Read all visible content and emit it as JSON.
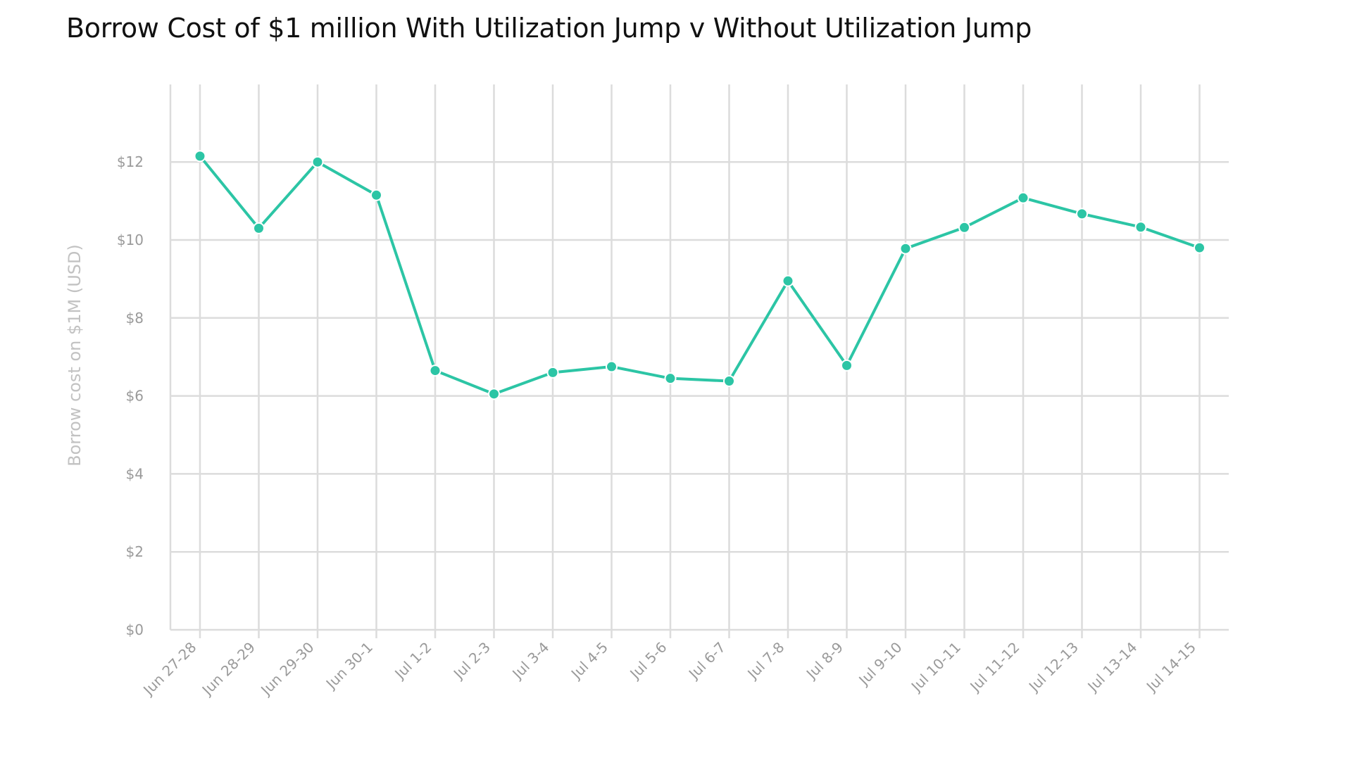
{
  "chart_data": {
    "type": "line",
    "title": "Borrow Cost of $1 million With Utilization Jump v Without Utilization Jump",
    "xlabel": "",
    "ylabel": "Borrow cost on $1M (USD)",
    "ylim": [
      0,
      14
    ],
    "yticks": [
      0,
      2,
      4,
      6,
      8,
      10,
      12
    ],
    "ytick_labels": [
      "$0",
      "$2",
      "$4",
      "$6",
      "$8",
      "$10",
      "$12"
    ],
    "grid": true,
    "color": "#2cc5a5",
    "categories": [
      "Jun 27-28",
      "Jun 28-29",
      "Jun 29-30",
      "Jun 30-1",
      "Jul 1-2",
      "Jul 2-3",
      "Jul 3-4",
      "Jul 4-5",
      "Jul 5-6",
      "Jul 6-7",
      "Jul 7-8",
      "Jul 8-9",
      "Jul 9-10",
      "Jul 10-11",
      "Jul 11-12",
      "Jul 12-13",
      "Jul 13-14",
      "Jul 14-15"
    ],
    "series": [
      {
        "values": [
          12.15,
          10.3,
          12.0,
          11.15,
          6.65,
          6.05,
          6.6,
          6.75,
          6.45,
          6.38,
          8.95,
          6.78,
          9.78,
          10.32,
          11.08,
          10.67,
          10.33,
          9.8
        ]
      }
    ]
  }
}
